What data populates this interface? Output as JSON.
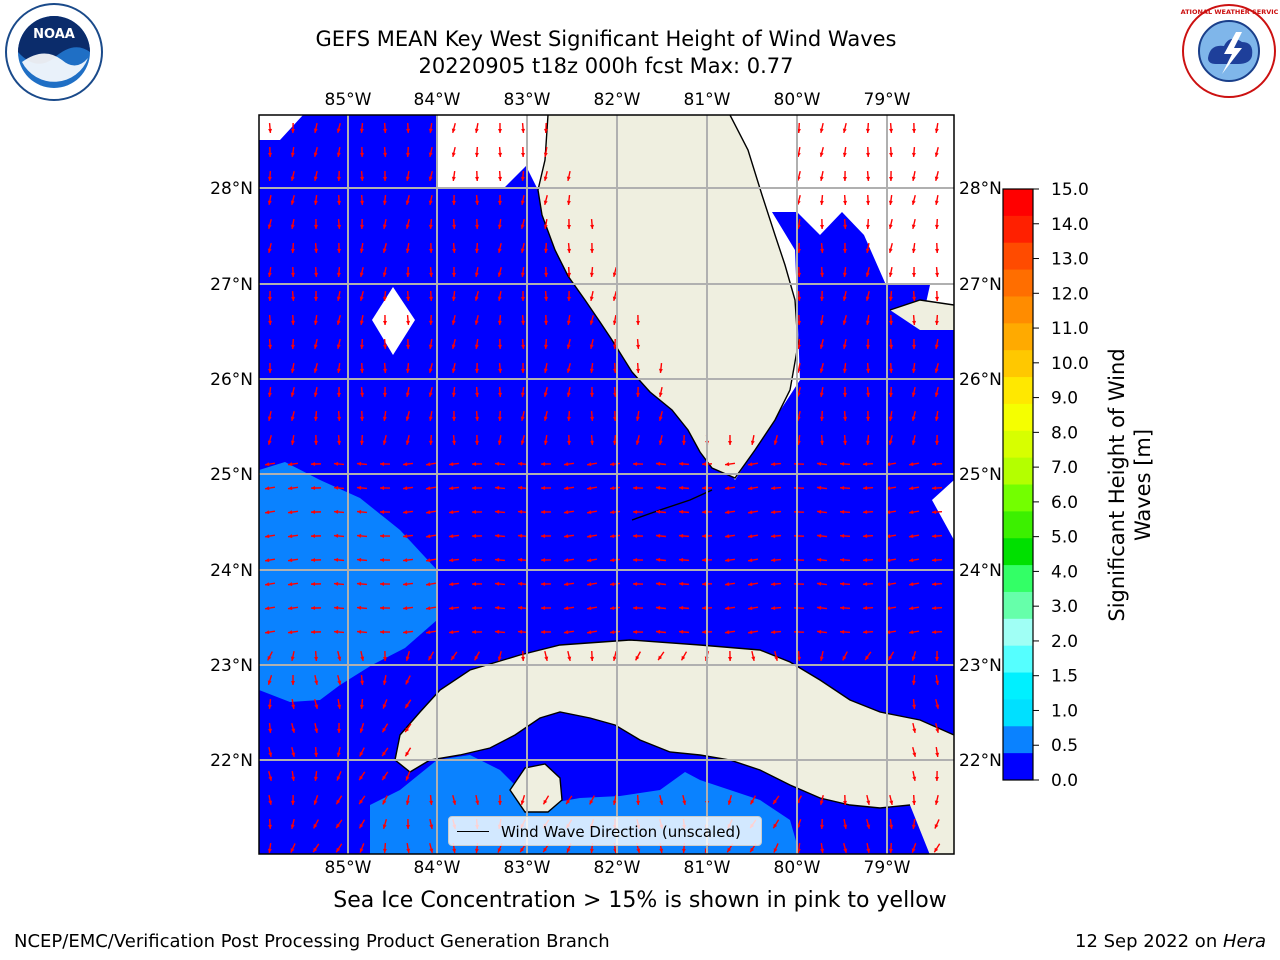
{
  "title_line1": "GEFS MEAN Key West Significant Height of Wind Waves",
  "title_line2": "20220905 t18z 000h fcst   Max: 0.77",
  "colors": {
    "land": "#efefe0",
    "ocean_low": "#0000ff",
    "ocean_mid": "#0a82ff",
    "arrow": "#ff0000",
    "grid": "#b0b0b0"
  },
  "axes": {
    "lon_labels": [
      "85°W",
      "84°W",
      "83°W",
      "82°W",
      "81°W",
      "80°W",
      "79°W"
    ],
    "lat_labels": [
      "28°N",
      "27°N",
      "26°N",
      "25°N",
      "24°N",
      "23°N",
      "22°N"
    ]
  },
  "colorbar": {
    "label": "Significant Height of Wind Waves [m]",
    "label_line1": "Significant Height of Wind",
    "label_line2": "Waves [m]",
    "ticks": [
      "15.0",
      "14.0",
      "13.0",
      "12.0",
      "11.0",
      "10.0",
      "9.0",
      "8.0",
      "7.0",
      "6.0",
      "5.0",
      "4.0",
      "3.0",
      "2.0",
      "1.5",
      "1.0",
      "0.5",
      "0.0"
    ],
    "colors_top_to_bottom": [
      "#ff0000",
      "#ff2000",
      "#ff4b00",
      "#ff6e00",
      "#ff8c00",
      "#ffaa00",
      "#ffc800",
      "#ffe800",
      "#f5ff00",
      "#d7ff00",
      "#b4ff00",
      "#73ff00",
      "#3cf000",
      "#00e000",
      "#33ff66",
      "#66ffaa",
      "#a0fff5",
      "#55ffff",
      "#00f0ff",
      "#00e0ff",
      "#0a82ff",
      "#0000ff"
    ]
  },
  "legend_label": "Wind Wave Direction (unscaled)",
  "sea_ice_note": "Sea Ice Concentration > 15% is shown in pink to yellow",
  "footer_left": "NCEP/EMC/Verification Post Processing Product Generation Branch",
  "footer_right_date": "12 Sep 2022 on ",
  "footer_right_machine": "Hera",
  "logos": {
    "left": "noaa-logo",
    "left_text": "NOAA",
    "right": "nws-logo",
    "right_text": "NATIONAL WEATHER SERVICE"
  }
}
